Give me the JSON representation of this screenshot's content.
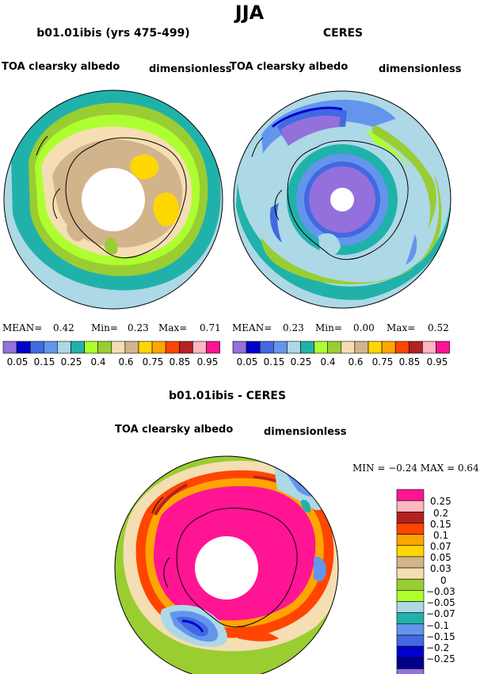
{
  "header": {
    "title": "JJA"
  },
  "panels": [
    {
      "case": "b01.01ibis (yrs 475-499)",
      "variable": "TOA clearsky albedo",
      "units": "dimensionless",
      "stats": {
        "mean_label": "MEAN=",
        "mean": "0.42",
        "min_label": "Min=",
        "min": "0.23",
        "max_label": "Max=",
        "max": "0.71"
      }
    },
    {
      "case": "CERES",
      "variable": "TOA clearsky albedo",
      "units": "dimensionless",
      "stats": {
        "mean_label": "MEAN=",
        "mean": "0.23",
        "min_label": "Min=",
        "min": "0.00",
        "max_label": "Max=",
        "max": "0.52"
      }
    }
  ],
  "abs_colorbar": {
    "colors": [
      "#9370DB",
      "#0000CD",
      "#4169E1",
      "#6495ED",
      "#ADD8E6",
      "#20B2AA",
      "#ADFF2F",
      "#9ACD32",
      "#F5DEB3",
      "#D2B48C",
      "#FFD700",
      "#FFA500",
      "#FF4500",
      "#B22222",
      "#FFB6C1",
      "#FF1493"
    ],
    "labels": [
      "0.05",
      "0.15",
      "0.25",
      "0.4",
      "0.6",
      "0.75",
      "0.85",
      "0.95"
    ]
  },
  "diff": {
    "title": "b01.01ibis - CERES",
    "variable": "TOA clearsky albedo",
    "units": "dimensionless",
    "stats": "MIN =   −0.24  MAX =    0.64",
    "colorbar": {
      "colors": [
        "#FF1493",
        "#FFB6C1",
        "#B22222",
        "#FF4500",
        "#FFA500",
        "#FFD700",
        "#D2B48C",
        "#F5DEB3",
        "#9ACD32",
        "#ADFF2F",
        "#ADD8E6",
        "#20B2AA",
        "#6495ED",
        "#4169E1",
        "#0000CD",
        "#00008B",
        "#9370DB"
      ],
      "labels": [
        "0.25",
        "0.2",
        "0.15",
        "0.1",
        "0.07",
        "0.05",
        "0.03",
        "0",
        "−0.03",
        "−0.05",
        "−0.07",
        "−0.1",
        "−0.15",
        "−0.2",
        "−0.25"
      ]
    }
  },
  "map_colors": {
    "ocean_lightblue": "#ADD8E6",
    "teal": "#20B2AA",
    "green": "#9ACD32",
    "lime": "#ADFF2F",
    "wheat": "#F5DEB3",
    "tan": "#D2B48C",
    "gold": "#FFD700",
    "purple": "#9370DB",
    "blue": "#4169E1",
    "cornflower": "#6495ED",
    "darkblue": "#0000CD",
    "pink": "#FF1493",
    "lightpink": "#FFB6C1",
    "firebrick": "#B22222",
    "orangered": "#FF4500",
    "orange": "#FFA500"
  }
}
